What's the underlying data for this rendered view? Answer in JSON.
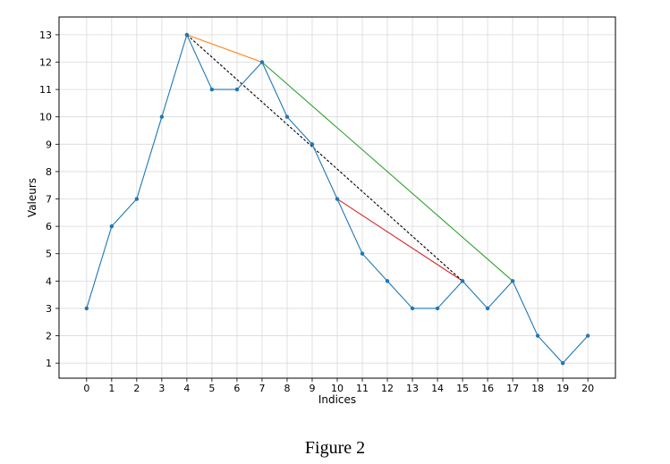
{
  "caption": "Figure 2",
  "chart_data": {
    "type": "line",
    "xlabel": "Indices",
    "ylabel": "Valeurs",
    "xlim": [
      -1.1,
      21.1
    ],
    "ylim": [
      0.45,
      13.65
    ],
    "grid": true,
    "x_ticks": [
      0,
      1,
      2,
      3,
      4,
      5,
      6,
      7,
      8,
      9,
      10,
      11,
      12,
      13,
      14,
      15,
      16,
      17,
      18,
      19,
      20
    ],
    "y_ticks": [
      1,
      2,
      3,
      4,
      5,
      6,
      7,
      8,
      9,
      10,
      11,
      12,
      13
    ],
    "series": [
      {
        "x": [
          0,
          1,
          2,
          3,
          4,
          5,
          6,
          7,
          8,
          9,
          10,
          11,
          12,
          13,
          14,
          15,
          16,
          17,
          18,
          19,
          20
        ],
        "values": [
          3,
          6,
          7,
          10,
          13,
          11,
          11,
          12,
          10,
          9,
          7,
          5,
          4,
          3,
          3,
          4,
          3,
          4,
          2,
          1,
          2
        ],
        "color": "#1f77b4",
        "markers": true
      }
    ],
    "segments": [
      {
        "from": [
          4,
          13
        ],
        "to": [
          7,
          12
        ],
        "color": "#ff7f0e",
        "style": "solid"
      },
      {
        "from": [
          7,
          12
        ],
        "to": [
          17,
          4
        ],
        "color": "#2ca02c",
        "style": "solid"
      },
      {
        "from": [
          10,
          7
        ],
        "to": [
          15,
          4
        ],
        "color": "#d62728",
        "style": "solid"
      },
      {
        "from": [
          4,
          13
        ],
        "to": [
          15,
          4
        ],
        "color": "#000000",
        "style": "dashed"
      }
    ]
  }
}
